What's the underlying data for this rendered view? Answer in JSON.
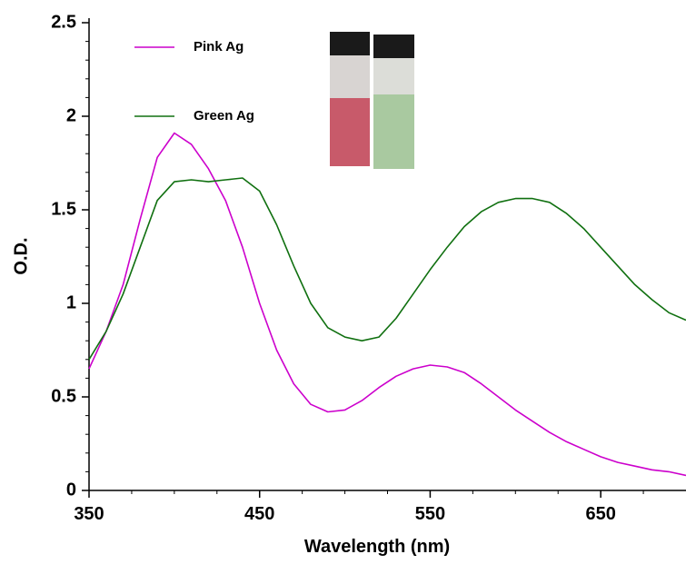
{
  "chart_data": {
    "type": "line",
    "x_label": "Wavelength (nm)",
    "y_label": "O.D.",
    "x": [
      350,
      360,
      370,
      380,
      390,
      400,
      410,
      420,
      430,
      440,
      450,
      460,
      470,
      480,
      490,
      500,
      510,
      520,
      530,
      540,
      550,
      560,
      570,
      580,
      590,
      600,
      610,
      620,
      630,
      640,
      650,
      660,
      670,
      680,
      690,
      700
    ],
    "series": [
      {
        "name": "Pink Ag",
        "color": "#cc00cc",
        "values": [
          0.65,
          0.85,
          1.1,
          1.45,
          1.78,
          1.91,
          1.85,
          1.72,
          1.55,
          1.3,
          1.0,
          0.75,
          0.57,
          0.46,
          0.42,
          0.43,
          0.48,
          0.55,
          0.61,
          0.65,
          0.67,
          0.66,
          0.63,
          0.57,
          0.5,
          0.43,
          0.37,
          0.31,
          0.26,
          0.22,
          0.18,
          0.15,
          0.13,
          0.11,
          0.1,
          0.08
        ]
      },
      {
        "name": "Green Ag",
        "color": "#107010",
        "values": [
          0.7,
          0.85,
          1.05,
          1.3,
          1.55,
          1.65,
          1.66,
          1.65,
          1.66,
          1.67,
          1.6,
          1.42,
          1.2,
          1.0,
          0.87,
          0.82,
          0.8,
          0.82,
          0.92,
          1.05,
          1.18,
          1.3,
          1.41,
          1.49,
          1.54,
          1.56,
          1.56,
          1.54,
          1.48,
          1.4,
          1.3,
          1.2,
          1.1,
          1.02,
          0.95,
          0.91
        ]
      }
    ],
    "xlim": [
      350,
      700
    ],
    "xticks": [
      350,
      450,
      550,
      650
    ],
    "ylim": [
      0,
      2.5
    ],
    "yticks": [
      0,
      0.5,
      1,
      1.5,
      2,
      2.5
    ]
  }
}
